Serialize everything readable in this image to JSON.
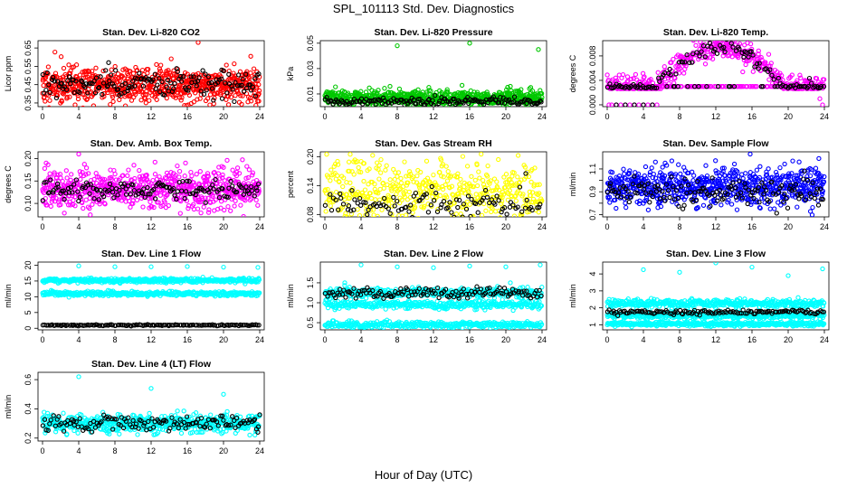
{
  "figure": {
    "title": "SPL_101113  Std. Dev. Diagnostics",
    "xlabel": "Hour of Day (UTC)"
  },
  "chart_data": [
    {
      "type": "scatter",
      "title": "Stan. Dev. Li-820 CO2",
      "ylabel": "Licor ppm",
      "xlim": [
        0,
        24
      ],
      "ylim": [
        0.33,
        0.69
      ],
      "xticks": [
        0,
        4,
        8,
        12,
        16,
        20,
        24
      ],
      "yticks": [
        0.35,
        0.45,
        0.55,
        0.65
      ],
      "yticklabels": [
        "0.35",
        "0.45",
        "0.55",
        "0.65"
      ],
      "grid": false,
      "series": [
        {
          "color": "#ff0000",
          "base": 0.45,
          "amp": 0.0,
          "spread": 0.05,
          "n": 700,
          "seed": 11,
          "outliers": [
            [
              17.2,
              0.68
            ],
            [
              16.1,
              0.34
            ],
            [
              3.6,
              0.34
            ],
            [
              23.9,
              0.36
            ]
          ]
        },
        {
          "color": "#000000",
          "base": 0.45,
          "amp": 0.0,
          "spread": 0.04,
          "n": 150,
          "seed": 12,
          "outliers": [
            [
              7.3,
              0.57
            ],
            [
              19.8,
              0.53
            ]
          ]
        }
      ]
    },
    {
      "type": "scatter",
      "title": "Stan. Dev. Li-820 Pressure",
      "ylabel": "kPa",
      "xlim": [
        0,
        24
      ],
      "ylim": [
        0.0,
        0.052
      ],
      "xticks": [
        0,
        4,
        8,
        12,
        16,
        20,
        24
      ],
      "yticks": [
        0.01,
        0.03,
        0.05
      ],
      "yticklabels": [
        "0.01",
        "0.03",
        "0.05"
      ],
      "grid": false,
      "series": [
        {
          "color": "#00c800",
          "base": 0.007,
          "amp": 0.002,
          "spread": 0.003,
          "n": 700,
          "seed": 21,
          "outliers": [
            [
              8.0,
              0.048
            ],
            [
              16.0,
              0.05
            ],
            [
              23.6,
              0.045
            ],
            [
              20.5,
              0.016
            ]
          ]
        },
        {
          "color": "#000000",
          "base": 0.004,
          "amp": 0.001,
          "spread": 0.0015,
          "n": 150,
          "seed": 22,
          "outliers": []
        }
      ]
    },
    {
      "type": "scatter",
      "title": "Stan. Dev. Li-820 Temp.",
      "ylabel": "degrees C",
      "xlim": [
        0,
        24
      ],
      "ylim": [
        -0.0003,
        0.0105
      ],
      "xticks": [
        0,
        4,
        8,
        12,
        16,
        20,
        24
      ],
      "yticks": [
        0.0,
        0.004,
        0.008
      ],
      "yticklabels": [
        "0.000",
        "0.004",
        "0.008"
      ],
      "grid": false,
      "shape": "hump",
      "hump_center": 12.5,
      "hump_width": 7.0,
      "hump_floor": 0.003,
      "hump_peak": 0.0095,
      "series": [
        {
          "color": "#ff00ff",
          "base": 0.003,
          "amp": 0.0065,
          "spread": 0.0009,
          "n": 600,
          "seed": 31,
          "outliers": [
            [
              0.2,
              0.0
            ],
            [
              0.5,
              0.0
            ],
            [
              1.0,
              0.0
            ],
            [
              1.5,
              0.0
            ],
            [
              2.0,
              0.0
            ],
            [
              2.5,
              0.0
            ],
            [
              3.0,
              0.0
            ],
            [
              3.5,
              0.0
            ],
            [
              4.0,
              0.0
            ],
            [
              4.5,
              0.0
            ],
            [
              5.0,
              0.0
            ],
            [
              5.5,
              0.0
            ],
            [
              23.8,
              0.0
            ],
            [
              23.5,
              0.001
            ]
          ]
        },
        {
          "color": "#000000",
          "base": 0.003,
          "amp": 0.0062,
          "spread": 0.0006,
          "n": 130,
          "seed": 32,
          "outliers": [
            [
              1.0,
              0.0
            ],
            [
              2.0,
              0.0
            ],
            [
              3.0,
              0.0
            ],
            [
              4.0,
              0.0
            ],
            [
              5.0,
              0.0
            ]
          ]
        }
      ]
    },
    {
      "type": "scatter",
      "title": "Stan. Dev. Amb. Box Temp.",
      "ylabel": "degrees C",
      "xlim": [
        0,
        24
      ],
      "ylim": [
        0.07,
        0.215
      ],
      "xticks": [
        0,
        4,
        8,
        12,
        16,
        20,
        24
      ],
      "yticks": [
        0.1,
        0.15,
        0.2
      ],
      "yticklabels": [
        "0.10",
        "0.15",
        "0.20"
      ],
      "grid": false,
      "series": [
        {
          "color": "#ff00ff",
          "base": 0.13,
          "amp": 0.0,
          "spread": 0.022,
          "n": 650,
          "seed": 41,
          "outliers": [
            [
              4.0,
              0.21
            ],
            [
              0.4,
              0.19
            ],
            [
              15.8,
              0.19
            ]
          ]
        },
        {
          "color": "#000000",
          "base": 0.13,
          "amp": 0.0,
          "spread": 0.012,
          "n": 140,
          "seed": 42,
          "outliers": []
        }
      ]
    },
    {
      "type": "scatter",
      "title": "Stan. Dev. Gas Stream RH",
      "ylabel": "percent",
      "xlim": [
        0,
        24
      ],
      "ylim": [
        0.075,
        0.21
      ],
      "xticks": [
        0,
        4,
        8,
        12,
        16,
        20,
        24
      ],
      "yticks": [
        0.08,
        0.14,
        0.2
      ],
      "yticklabels": [
        "0.08",
        "0.14",
        "0.20"
      ],
      "grid": false,
      "series": [
        {
          "color": "#ffff00",
          "base": 0.13,
          "amp": 0.0,
          "spread": 0.032,
          "n": 500,
          "seed": 51,
          "outliers": [
            [
              0.2,
              0.205
            ],
            [
              2.8,
              0.205
            ]
          ]
        },
        {
          "color": "#000000",
          "base": 0.1,
          "amp": 0.0,
          "spread": 0.014,
          "n": 110,
          "seed": 52,
          "outliers": [
            [
              22.2,
              0.165
            ],
            [
              3.0,
              0.13
            ]
          ]
        }
      ]
    },
    {
      "type": "scatter",
      "title": "Stan. Dev. Sample Flow",
      "ylabel": "ml/min",
      "xlim": [
        0,
        24
      ],
      "ylim": [
        0.68,
        1.25
      ],
      "xticks": [
        0,
        4,
        8,
        12,
        16,
        20,
        24
      ],
      "yticks": [
        0.7,
        0.8,
        0.9,
        1.0,
        1.1
      ],
      "yticklabels": [
        "0.7",
        "",
        "0.9",
        "",
        "1.1"
      ],
      "grid": false,
      "series": [
        {
          "color": "#0000ff",
          "base": 0.95,
          "amp": 0.0,
          "spread": 0.085,
          "n": 700,
          "seed": 61,
          "outliers": [
            [
              15.8,
              1.23
            ],
            [
              20.5,
              1.17
            ]
          ]
        },
        {
          "color": "#000000",
          "base": 0.9,
          "amp": 0.0,
          "spread": 0.06,
          "n": 140,
          "seed": 62,
          "outliers": []
        }
      ]
    },
    {
      "type": "scatter",
      "title": "Stan. Dev. Line 1 Flow",
      "ylabel": "ml/min",
      "xlim": [
        0,
        24
      ],
      "ylim": [
        -0.5,
        21
      ],
      "xticks": [
        0,
        4,
        8,
        12,
        16,
        20,
        24
      ],
      "yticks": [
        0,
        5,
        10,
        15,
        20
      ],
      "yticklabels": [
        "0",
        "5",
        "10",
        "15",
        "20"
      ],
      "grid": false,
      "series": [
        {
          "color": "#00ffff",
          "base": 15.2,
          "amp": 0.0,
          "spread": 0.35,
          "n": 420,
          "seed": 71,
          "outliers": [
            [
              4.0,
              19.8
            ],
            [
              8.0,
              19.5
            ],
            [
              12.0,
              19.5
            ],
            [
              16.0,
              19.6
            ],
            [
              20.0,
              19.4
            ],
            [
              23.8,
              19.3
            ]
          ]
        },
        {
          "color": "#00ffff",
          "base": 11.0,
          "amp": 0.0,
          "spread": 0.35,
          "n": 420,
          "seed": 72,
          "outliers": []
        },
        {
          "color": "#000000",
          "base": 1.0,
          "amp": 0.0,
          "spread": 0.1,
          "n": 140,
          "seed": 73,
          "outliers": []
        }
      ]
    },
    {
      "type": "scatter",
      "title": "Stan. Dev. Line 2 Flow",
      "ylabel": "ml/min",
      "xlim": [
        0,
        24
      ],
      "ylim": [
        0.32,
        2.02
      ],
      "xticks": [
        0,
        4,
        8,
        12,
        16,
        20,
        24
      ],
      "yticks": [
        0.5,
        1.0,
        1.5
      ],
      "yticklabels": [
        "0.5",
        "1.0",
        "1.5"
      ],
      "grid": false,
      "series": [
        {
          "color": "#00ffff",
          "base": 1.25,
          "amp": 0.0,
          "spread": 0.06,
          "n": 380,
          "seed": 81,
          "outliers": [
            [
              4.0,
              1.95
            ],
            [
              8.0,
              1.9
            ],
            [
              12.0,
              1.88
            ],
            [
              16.0,
              1.92
            ],
            [
              20.0,
              1.9
            ],
            [
              23.8,
              1.95
            ],
            [
              2.2,
              1.5
            ],
            [
              20.5,
              1.5
            ]
          ]
        },
        {
          "color": "#00ffff",
          "base": 0.95,
          "amp": 0.0,
          "spread": 0.05,
          "n": 380,
          "seed": 82,
          "outliers": []
        },
        {
          "color": "#00ffff",
          "base": 0.45,
          "amp": 0.0,
          "spread": 0.04,
          "n": 380,
          "seed": 83,
          "outliers": []
        },
        {
          "color": "#000000",
          "base": 1.25,
          "amp": 0.0,
          "spread": 0.07,
          "n": 130,
          "seed": 84,
          "outliers": []
        }
      ]
    },
    {
      "type": "scatter",
      "title": "Stan. Dev. Line 3 Flow",
      "ylabel": "ml/min",
      "xlim": [
        0,
        24
      ],
      "ylim": [
        0.7,
        4.7
      ],
      "xticks": [
        0,
        4,
        8,
        12,
        16,
        20,
        24
      ],
      "yticks": [
        1,
        2,
        3,
        4
      ],
      "yticklabels": [
        "1",
        "2",
        "3",
        "4"
      ],
      "grid": false,
      "series": [
        {
          "color": "#00ffff",
          "base": 2.25,
          "amp": 0.0,
          "spread": 0.12,
          "n": 420,
          "seed": 91,
          "outliers": [
            [
              4.0,
              4.25
            ],
            [
              8.0,
              4.1
            ],
            [
              12.0,
              4.65
            ],
            [
              16.0,
              4.4
            ],
            [
              20.0,
              3.9
            ],
            [
              23.8,
              4.3
            ]
          ]
        },
        {
          "color": "#00ffff",
          "base": 1.55,
          "amp": 0.0,
          "spread": 0.1,
          "n": 420,
          "seed": 92,
          "outliers": []
        },
        {
          "color": "#00ffff",
          "base": 1.05,
          "amp": 0.0,
          "spread": 0.06,
          "n": 420,
          "seed": 93,
          "outliers": []
        },
        {
          "color": "#000000",
          "base": 1.75,
          "amp": 0.0,
          "spread": 0.06,
          "n": 130,
          "seed": 94,
          "outliers": []
        }
      ]
    },
    {
      "type": "scatter",
      "title": "Stan. Dev. Line 4 (LT) Flow",
      "ylabel": "ml/min",
      "xlim": [
        0,
        24
      ],
      "ylim": [
        0.18,
        0.65
      ],
      "xticks": [
        0,
        4,
        8,
        12,
        16,
        20,
        24
      ],
      "yticks": [
        0.2,
        0.4,
        0.6
      ],
      "yticklabels": [
        "0.2",
        "0.4",
        "0.6"
      ],
      "grid": false,
      "series": [
        {
          "color": "#00ffff",
          "base": 0.3,
          "amp": 0.0,
          "spread": 0.03,
          "n": 600,
          "seed": 101,
          "outliers": [
            [
              4.0,
              0.62
            ],
            [
              12.0,
              0.54
            ],
            [
              20.0,
              0.5
            ],
            [
              23.6,
              0.25
            ]
          ]
        },
        {
          "color": "#000000",
          "base": 0.3,
          "amp": 0.0,
          "spread": 0.025,
          "n": 130,
          "seed": 102,
          "outliers": [
            [
              24.0,
              0.36
            ],
            [
              23.8,
              0.24
            ]
          ]
        }
      ]
    }
  ]
}
